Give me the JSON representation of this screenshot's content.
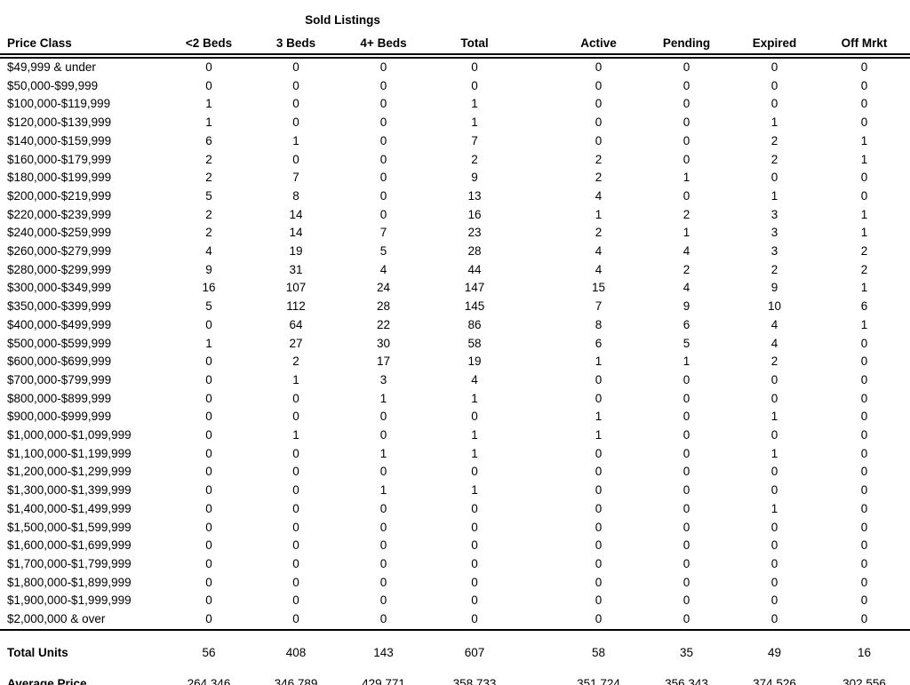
{
  "report": {
    "group_title": "Sold Listings",
    "columns": [
      "Price Class",
      "<2 Beds",
      "3 Beds",
      "4+ Beds",
      "Total",
      "Active",
      "Pending",
      "Expired",
      "Off Mrkt"
    ],
    "rows": [
      {
        "label": "$49,999 & under",
        "values": [
          "0",
          "0",
          "0",
          "0",
          "0",
          "0",
          "0",
          "0"
        ]
      },
      {
        "label": "$50,000-$99,999",
        "values": [
          "0",
          "0",
          "0",
          "0",
          "0",
          "0",
          "0",
          "0"
        ]
      },
      {
        "label": "$100,000-$119,999",
        "values": [
          "1",
          "0",
          "0",
          "1",
          "0",
          "0",
          "0",
          "0"
        ]
      },
      {
        "label": "$120,000-$139,999",
        "values": [
          "1",
          "0",
          "0",
          "1",
          "0",
          "0",
          "1",
          "0"
        ]
      },
      {
        "label": "$140,000-$159,999",
        "values": [
          "6",
          "1",
          "0",
          "7",
          "0",
          "0",
          "2",
          "1"
        ]
      },
      {
        "label": "$160,000-$179,999",
        "values": [
          "2",
          "0",
          "0",
          "2",
          "2",
          "0",
          "2",
          "1"
        ]
      },
      {
        "label": "$180,000-$199,999",
        "values": [
          "2",
          "7",
          "0",
          "9",
          "2",
          "1",
          "0",
          "0"
        ]
      },
      {
        "label": "$200,000-$219,999",
        "values": [
          "5",
          "8",
          "0",
          "13",
          "4",
          "0",
          "1",
          "0"
        ]
      },
      {
        "label": "$220,000-$239,999",
        "values": [
          "2",
          "14",
          "0",
          "16",
          "1",
          "2",
          "3",
          "1"
        ]
      },
      {
        "label": "$240,000-$259,999",
        "values": [
          "2",
          "14",
          "7",
          "23",
          "2",
          "1",
          "3",
          "1"
        ]
      },
      {
        "label": "$260,000-$279,999",
        "values": [
          "4",
          "19",
          "5",
          "28",
          "4",
          "4",
          "3",
          "2"
        ]
      },
      {
        "label": "$280,000-$299,999",
        "values": [
          "9",
          "31",
          "4",
          "44",
          "4",
          "2",
          "2",
          "2"
        ]
      },
      {
        "label": "$300,000-$349,999",
        "values": [
          "16",
          "107",
          "24",
          "147",
          "15",
          "4",
          "9",
          "1"
        ]
      },
      {
        "label": "$350,000-$399,999",
        "values": [
          "5",
          "112",
          "28",
          "145",
          "7",
          "9",
          "10",
          "6"
        ]
      },
      {
        "label": "$400,000-$499,999",
        "values": [
          "0",
          "64",
          "22",
          "86",
          "8",
          "6",
          "4",
          "1"
        ]
      },
      {
        "label": "$500,000-$599,999",
        "values": [
          "1",
          "27",
          "30",
          "58",
          "6",
          "5",
          "4",
          "0"
        ]
      },
      {
        "label": "$600,000-$699,999",
        "values": [
          "0",
          "2",
          "17",
          "19",
          "1",
          "1",
          "2",
          "0"
        ]
      },
      {
        "label": "$700,000-$799,999",
        "values": [
          "0",
          "1",
          "3",
          "4",
          "0",
          "0",
          "0",
          "0"
        ]
      },
      {
        "label": "$800,000-$899,999",
        "values": [
          "0",
          "0",
          "1",
          "1",
          "0",
          "0",
          "0",
          "0"
        ]
      },
      {
        "label": "$900,000-$999,999",
        "values": [
          "0",
          "0",
          "0",
          "0",
          "1",
          "0",
          "1",
          "0"
        ]
      },
      {
        "label": "$1,000,000-$1,099,999",
        "values": [
          "0",
          "1",
          "0",
          "1",
          "1",
          "0",
          "0",
          "0"
        ]
      },
      {
        "label": "$1,100,000-$1,199,999",
        "values": [
          "0",
          "0",
          "1",
          "1",
          "0",
          "0",
          "1",
          "0"
        ]
      },
      {
        "label": "$1,200,000-$1,299,999",
        "values": [
          "0",
          "0",
          "0",
          "0",
          "0",
          "0",
          "0",
          "0"
        ]
      },
      {
        "label": "$1,300,000-$1,399,999",
        "values": [
          "0",
          "0",
          "1",
          "1",
          "0",
          "0",
          "0",
          "0"
        ]
      },
      {
        "label": "$1,400,000-$1,499,999",
        "values": [
          "0",
          "0",
          "0",
          "0",
          "0",
          "0",
          "1",
          "0"
        ]
      },
      {
        "label": "$1,500,000-$1,599,999",
        "values": [
          "0",
          "0",
          "0",
          "0",
          "0",
          "0",
          "0",
          "0"
        ]
      },
      {
        "label": "$1,600,000-$1,699,999",
        "values": [
          "0",
          "0",
          "0",
          "0",
          "0",
          "0",
          "0",
          "0"
        ]
      },
      {
        "label": "$1,700,000-$1,799,999",
        "values": [
          "0",
          "0",
          "0",
          "0",
          "0",
          "0",
          "0",
          "0"
        ]
      },
      {
        "label": "$1,800,000-$1,899,999",
        "values": [
          "0",
          "0",
          "0",
          "0",
          "0",
          "0",
          "0",
          "0"
        ]
      },
      {
        "label": "$1,900,000-$1,999,999",
        "values": [
          "0",
          "0",
          "0",
          "0",
          "0",
          "0",
          "0",
          "0"
        ]
      },
      {
        "label": "$2,000,000 & over",
        "values": [
          "0",
          "0",
          "0",
          "0",
          "0",
          "0",
          "0",
          "0"
        ]
      }
    ],
    "summary": [
      {
        "label": "Total Units",
        "values": [
          "56",
          "408",
          "143",
          "607",
          "58",
          "35",
          "49",
          "16"
        ]
      },
      {
        "label": "Average Price",
        "values": [
          "264,346",
          "346,789",
          "429,771",
          "358,733",
          "351,724",
          "356,343",
          "374,526",
          "302,556"
        ]
      }
    ]
  }
}
